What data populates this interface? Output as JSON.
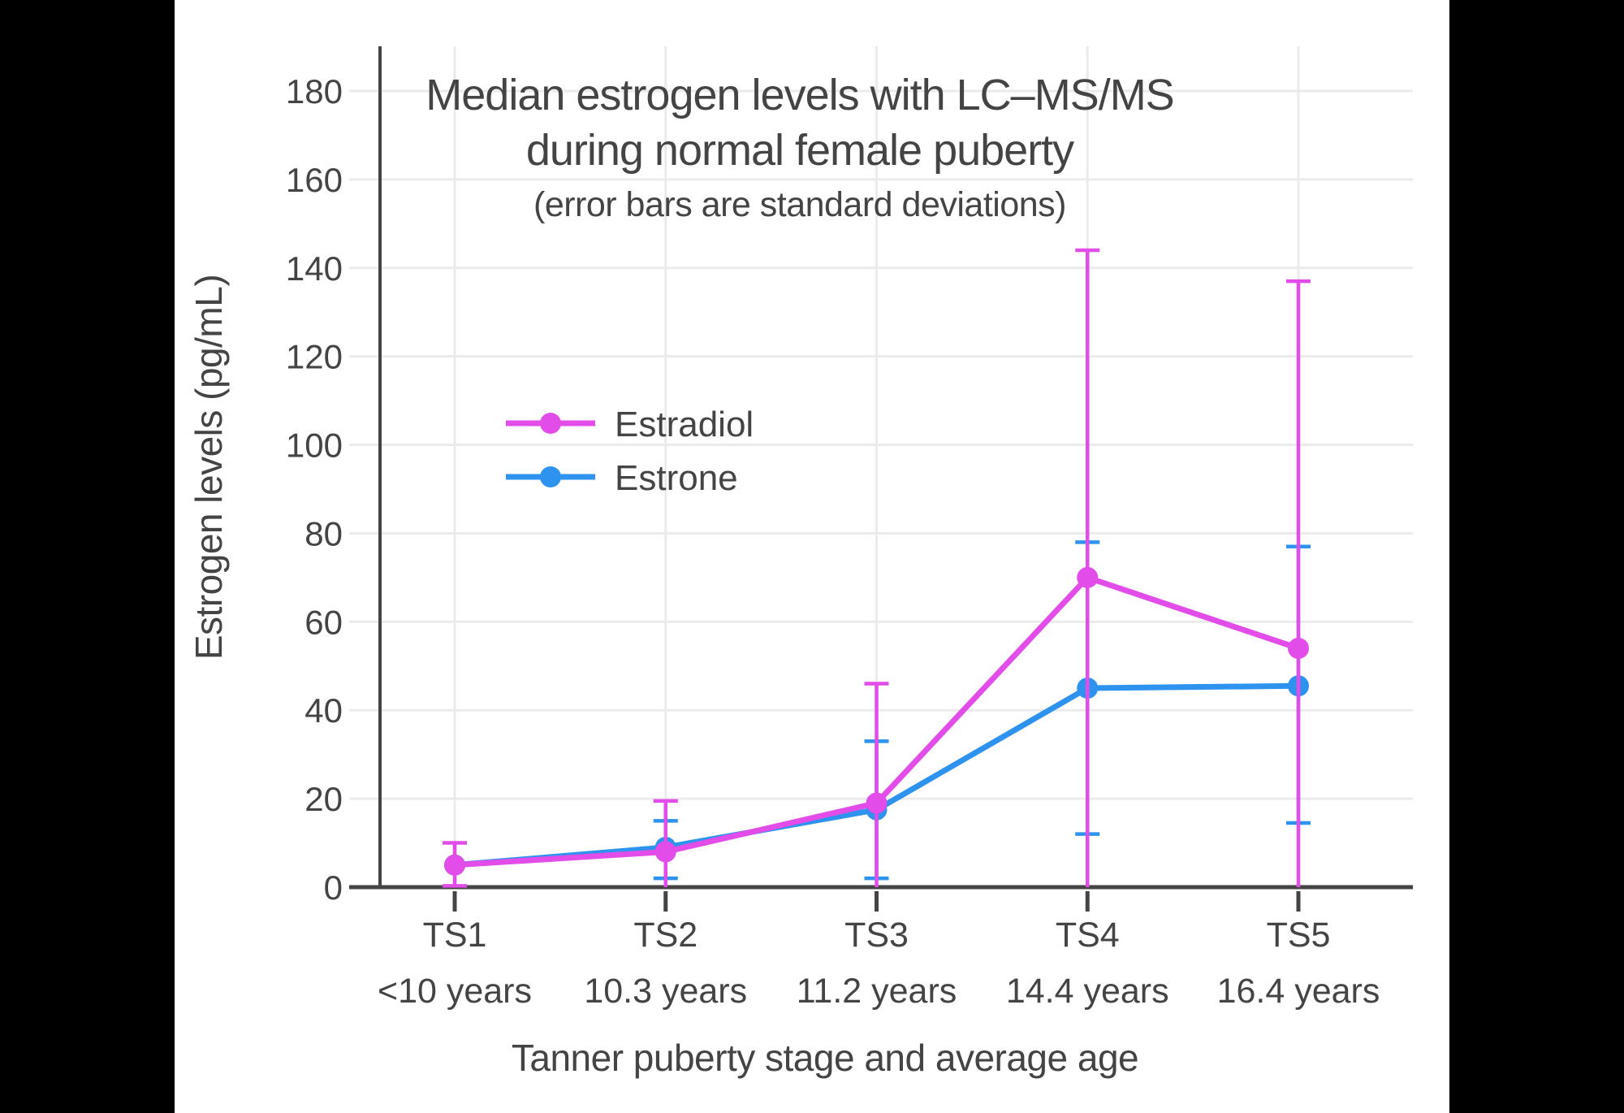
{
  "window": {
    "letterbox_color": "#000000",
    "figure_background": "#FFFFFF"
  },
  "chart_data": {
    "type": "line",
    "title_line1": "Median estrogen levels with LC–MS/MS",
    "title_line2": "during normal female puberty",
    "subtitle": "(error bars are standard deviations)",
    "xlabel": "Tanner puberty stage and average age",
    "ylabel": "Estrogen levels (pg/mL)",
    "categories": [
      "TS1",
      "TS2",
      "TS3",
      "TS4",
      "TS5"
    ],
    "category_ages": [
      "<10 years",
      "10.3 years",
      "11.2 years",
      "14.4 years",
      "16.4 years"
    ],
    "yticks": [
      0,
      20,
      40,
      60,
      80,
      100,
      120,
      140,
      160,
      180
    ],
    "ylim": [
      0,
      190
    ],
    "grid": true,
    "error_bar_meaning": "standard deviations",
    "legend": [
      {
        "label": "Estradiol",
        "color": "#E24CE8"
      },
      {
        "label": "Estrone",
        "color": "#2E93EE"
      }
    ],
    "legend_position": "inside-left",
    "series": [
      {
        "name": "Estrone",
        "color": "#2E93EE",
        "values": [
          5,
          9,
          17.5,
          45,
          45.5
        ],
        "error_top": [
          null,
          15,
          33,
          78,
          77
        ],
        "error_bottom": [
          null,
          2,
          2,
          12,
          14.5
        ],
        "error_bottom_cap": [
          false,
          true,
          true,
          true,
          true
        ]
      },
      {
        "name": "Estradiol",
        "color": "#E24CE8",
        "values": [
          5,
          8,
          19,
          70,
          54
        ],
        "error_top": [
          10,
          19.5,
          46,
          144,
          137
        ],
        "error_bottom": [
          0.3,
          0,
          0,
          0,
          0
        ],
        "error_bottom_cap": [
          true,
          false,
          false,
          false,
          false
        ]
      }
    ],
    "styles": {
      "text_color": "#444444",
      "axis_color": "#444444",
      "grid_color": "#EBEBEB",
      "marker_radius": 13,
      "line_width": 7
    }
  }
}
